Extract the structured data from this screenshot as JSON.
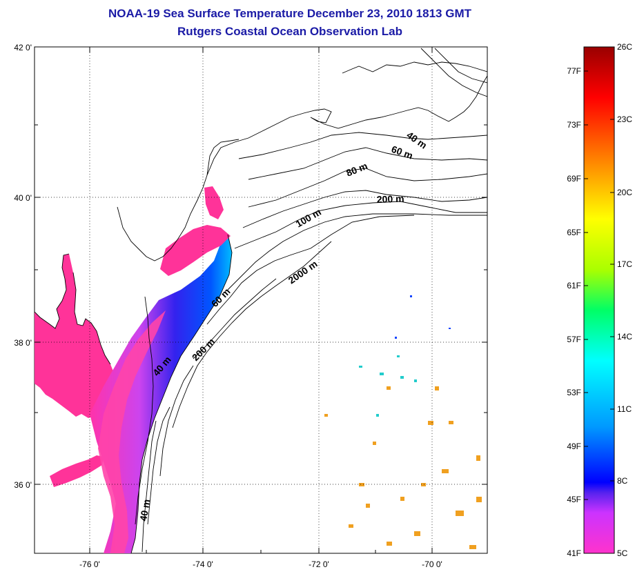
{
  "title": "NOAA-19 Sea Surface Temperature December 23, 2010 1813 GMT",
  "subtitle": "Rutgers Coastal Ocean Observation Lab",
  "map": {
    "lat_labels": [
      "42 0'",
      "40 0'",
      "38 0'",
      "36 0'"
    ],
    "lon_labels": [
      "-76 0'",
      "-74 0'",
      "-72 0'",
      "-70 0'"
    ],
    "grid": true,
    "contour_labels": [
      "40 m",
      "60 m",
      "80 m",
      "200 m",
      "100 m",
      "2000 m",
      "60 m",
      "40 m",
      "200 m",
      "40 m"
    ]
  },
  "colorbar": {
    "fahrenheit": [
      "77F",
      "73F",
      "69F",
      "65F",
      "61F",
      "57F",
      "53F",
      "49F",
      "45F",
      "41F"
    ],
    "celsius": [
      "26C",
      "23C",
      "20C",
      "17C",
      "14C",
      "11C",
      "8C",
      "5C"
    ],
    "colors": [
      "#ff33cc",
      "#cc33ff",
      "#5522ee",
      "#0000ff",
      "#0099ff",
      "#00ffff",
      "#00ff66",
      "#aaff00",
      "#ffff00",
      "#ffaa00",
      "#ff5500",
      "#ff0000",
      "#990000"
    ]
  }
}
